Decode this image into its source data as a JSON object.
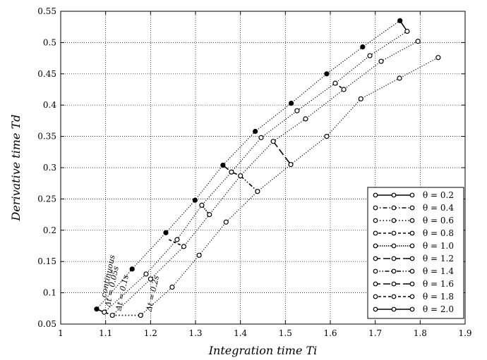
{
  "chart_data": {
    "type": "line",
    "xlabel": "Integration time  Ti",
    "ylabel": "Derivative time  Td",
    "xlim": [
      1.0,
      1.9
    ],
    "ylim": [
      0.05,
      0.55
    ],
    "x_ticks": [
      1,
      1.1,
      1.2,
      1.3,
      1.4,
      1.5,
      1.6,
      1.7,
      1.8,
      1.9
    ],
    "y_ticks": [
      0.05,
      0.1,
      0.15,
      0.2,
      0.25,
      0.3,
      0.35,
      0.4,
      0.45,
      0.5,
      0.55
    ],
    "grid": true,
    "legend_position": "bottom-right",
    "series": [
      {
        "name": "θ = 0.2",
        "style": "solid",
        "marker": "open",
        "x": [
          1.08,
          1.097
        ],
        "y": [
          0.074,
          0.069
        ]
      },
      {
        "name": "θ = 0.4",
        "style": "dashdot",
        "marker": "open",
        "x": [
          1.097,
          1.115
        ],
        "y": [
          0.069,
          0.064
        ]
      },
      {
        "name": "θ = 0.6",
        "style": "dotted",
        "marker": "open",
        "x": [
          1.115,
          1.178
        ],
        "y": [
          0.064,
          0.064
        ]
      },
      {
        "name": "θ = 0.8",
        "style": "dashed",
        "marker": "open",
        "x": [
          1.241,
          1.274
        ],
        "y": [
          0.185,
          0.174
        ]
      },
      {
        "name": "θ = 1.0",
        "style": "dense-dotted",
        "marker": "open",
        "x": [
          1.314,
          1.331
        ],
        "y": [
          0.24,
          0.225
        ]
      },
      {
        "name": "θ = 1.2",
        "style": "longdash",
        "marker": "open",
        "x": [
          1.361,
          1.38,
          1.4
        ],
        "y": [
          0.304,
          0.293,
          0.287
        ]
      },
      {
        "name": "θ = 1.4",
        "style": "dashdotdot",
        "marker": "open",
        "x": [
          1.4,
          1.438
        ],
        "y": [
          0.287,
          0.262
        ]
      },
      {
        "name": "θ = 1.6",
        "style": "longdash",
        "marker": "open",
        "x": [
          1.473,
          1.512
        ],
        "y": [
          0.342,
          0.305
        ]
      },
      {
        "name": "θ = 1.8",
        "style": "dashed",
        "marker": "open",
        "x": [
          1.611,
          1.63
        ],
        "y": [
          0.435,
          0.425
        ]
      },
      {
        "name": "θ = 2.0",
        "style": "solid",
        "marker": "open",
        "x": [
          1.755,
          1.771
        ],
        "y": [
          0.535,
          0.518
        ]
      }
    ],
    "sampling_curves": [
      {
        "label": "continuous",
        "marker": "filled",
        "x": [
          1.08,
          1.159,
          1.234,
          1.299,
          1.361,
          1.433,
          1.513,
          1.592,
          1.672,
          1.755
        ],
        "y": [
          0.074,
          0.138,
          0.196,
          0.248,
          0.304,
          0.358,
          0.403,
          0.45,
          0.493,
          0.535
        ]
      },
      {
        "label": "Δt = 0.05s",
        "marker": "open",
        "x": [
          1.097,
          1.19,
          1.259,
          1.314,
          1.38,
          1.446,
          1.526,
          1.611,
          1.688,
          1.771
        ],
        "y": [
          0.069,
          0.13,
          0.185,
          0.24,
          0.293,
          0.348,
          0.391,
          0.435,
          0.479,
          0.518
        ]
      },
      {
        "label": "Δt = 0.1s",
        "marker": "open",
        "x": [
          1.115,
          1.2,
          1.274,
          1.331,
          1.4,
          1.473,
          1.545,
          1.63,
          1.713,
          1.795
        ],
        "y": [
          0.064,
          0.122,
          0.174,
          0.225,
          0.287,
          0.342,
          0.378,
          0.425,
          0.47,
          0.502
        ]
      },
      {
        "label": "Δt = 0.2s",
        "marker": "open",
        "x": [
          1.178,
          1.248,
          1.308,
          1.368,
          1.438,
          1.512,
          1.592,
          1.668,
          1.754,
          1.84
        ],
        "y": [
          0.064,
          0.109,
          0.16,
          0.213,
          0.262,
          0.305,
          0.35,
          0.41,
          0.443,
          0.476
        ]
      }
    ]
  }
}
